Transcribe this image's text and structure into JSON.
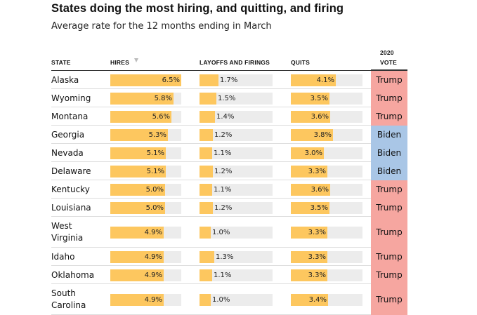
{
  "title": "States doing the most hiring, and quitting, and firing",
  "subtitle": "Average rate for the 12 months ending in March",
  "headers": {
    "state": "STATE",
    "hires": "HIRES",
    "layoffs": "LAYOFFS AND FIRINGS",
    "quits": "QUITS",
    "vote_line1": "2020",
    "vote_line2": "VOTE"
  },
  "colors": {
    "bar": "#fdc75f",
    "track": "#ececec",
    "trump": "#f6a6a0",
    "biden": "#a9c6e6"
  },
  "chart_data": {
    "type": "table",
    "title": "States doing the most hiring, and quitting, and firing",
    "subtitle": "Average rate for the 12 months ending in March",
    "columns": [
      "STATE",
      "HIRES",
      "LAYOFFS AND FIRINGS",
      "QUITS",
      "2020 VOTE"
    ],
    "sorted_by": "HIRES",
    "rows": [
      {
        "state": "Alaska",
        "hires": "6.5%",
        "layoffs": "1.7%",
        "quits": "4.1%",
        "vote": "Trump"
      },
      {
        "state": "Wyoming",
        "hires": "5.8%",
        "layoffs": "1.5%",
        "quits": "3.5%",
        "vote": "Trump"
      },
      {
        "state": "Montana",
        "hires": "5.6%",
        "layoffs": "1.4%",
        "quits": "3.6%",
        "vote": "Trump"
      },
      {
        "state": "Georgia",
        "hires": "5.3%",
        "layoffs": "1.2%",
        "quits": "3.8%",
        "vote": "Biden"
      },
      {
        "state": "Nevada",
        "hires": "5.1%",
        "layoffs": "1.1%",
        "quits": "3.0%",
        "vote": "Biden"
      },
      {
        "state": "Delaware",
        "hires": "5.1%",
        "layoffs": "1.2%",
        "quits": "3.3%",
        "vote": "Biden"
      },
      {
        "state": "Kentucky",
        "hires": "5.0%",
        "layoffs": "1.1%",
        "quits": "3.6%",
        "vote": "Trump"
      },
      {
        "state": "Louisiana",
        "hires": "5.0%",
        "layoffs": "1.2%",
        "quits": "3.5%",
        "vote": "Trump"
      },
      {
        "state": "West Virginia",
        "hires": "4.9%",
        "layoffs": "1.0%",
        "quits": "3.3%",
        "vote": "Trump"
      },
      {
        "state": "Idaho",
        "hires": "4.9%",
        "layoffs": "1.3%",
        "quits": "3.3%",
        "vote": "Trump"
      },
      {
        "state": "Oklahoma",
        "hires": "4.9%",
        "layoffs": "1.1%",
        "quits": "3.3%",
        "vote": "Trump"
      },
      {
        "state": "South Carolina",
        "hires": "4.9%",
        "layoffs": "1.0%",
        "quits": "3.4%",
        "vote": "Trump"
      }
    ]
  }
}
